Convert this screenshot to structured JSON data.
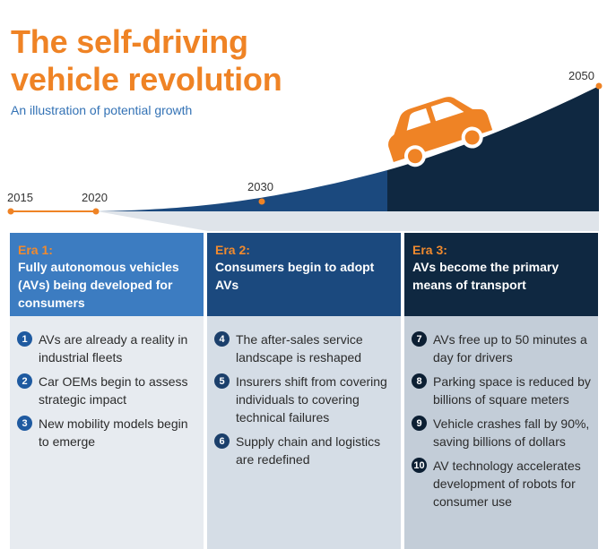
{
  "title_line1": "The self-driving",
  "title_line2": "vehicle revolution",
  "subtitle": "An illustration of potential growth",
  "years": {
    "y2015": "2015",
    "y2020": "2020",
    "y2030": "2030",
    "y2050": "2050"
  },
  "colors": {
    "orange": "#ef8325",
    "era1": "#3c7cc1",
    "era2": "#1b497e",
    "era3": "#0f2841"
  },
  "icons": {
    "car": "car-icon"
  },
  "eras": [
    {
      "label": "Era 1:",
      "title": "Fully autonomous vehicles (AVs) being developed for consumers",
      "items": [
        {
          "num": "1",
          "text": "AVs are already a reality in industrial fleets"
        },
        {
          "num": "2",
          "text": "Car OEMs begin to assess strategic impact"
        },
        {
          "num": "3",
          "text": "New mobility models begin to emerge"
        }
      ]
    },
    {
      "label": "Era 2:",
      "title": "Consumers begin to adopt AVs",
      "items": [
        {
          "num": "4",
          "text": "The after-sales service landscape is reshaped"
        },
        {
          "num": "5",
          "text": "Insurers shift from covering individuals to covering technical failures"
        },
        {
          "num": "6",
          "text": "Supply chain and logistics are redefined"
        }
      ]
    },
    {
      "label": "Era 3:",
      "title": "AVs become the primary means of transport",
      "items": [
        {
          "num": "7",
          "text": "AVs free up to 50 minutes a day for drivers"
        },
        {
          "num": "8",
          "text": "Parking space is reduced by billions of square meters"
        },
        {
          "num": "9",
          "text": "Vehicle crashes fall by 90%, saving billions of dollars"
        },
        {
          "num": "10",
          "text": "AV technology accelerates development of robots for consumer use"
        }
      ]
    }
  ]
}
